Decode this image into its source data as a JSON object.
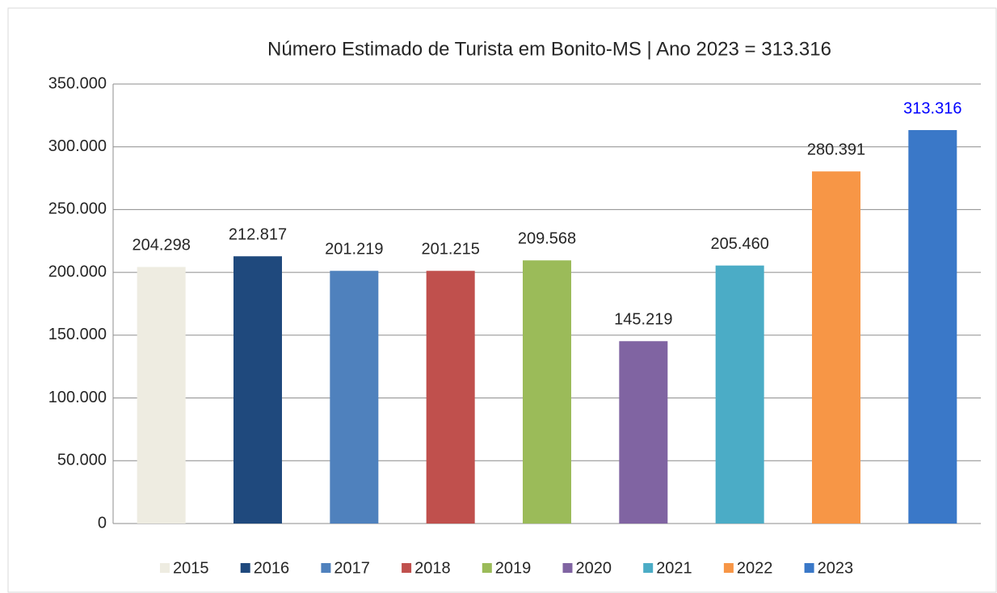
{
  "chart_data": {
    "type": "bar",
    "title": "Número Estimado de Turista em Bonito-MS | Ano 2023 = 313.316",
    "categories": [
      "2015",
      "2016",
      "2017",
      "2018",
      "2019",
      "2020",
      "2021",
      "2022",
      "2023"
    ],
    "values": [
      204298,
      212817,
      201219,
      201215,
      209568,
      145219,
      205460,
      280391,
      313316
    ],
    "value_labels": [
      "204.298",
      "212.817",
      "201.219",
      "201.215",
      "209.568",
      "145.219",
      "205.460",
      "280.391",
      "313.316"
    ],
    "colors": [
      "#eeece1",
      "#1f497d",
      "#4f81bd",
      "#c0504d",
      "#9bbb59",
      "#8064a2",
      "#4bacc6",
      "#f79646",
      "#3a78c8"
    ],
    "value_label_colors": [
      "#262626",
      "#262626",
      "#262626",
      "#262626",
      "#262626",
      "#262626",
      "#262626",
      "#262626",
      "#0000ff"
    ],
    "ylim": [
      0,
      350000
    ],
    "yticks": [
      0,
      {
        "value": 50000,
        "label": "50.000"
      },
      {
        "value": 100000,
        "label": "100.000"
      },
      {
        "value": 150000,
        "label": "150.000"
      },
      {
        "value": 200000,
        "label": "200.000"
      },
      {
        "value": 250000,
        "label": "250.000"
      },
      {
        "value": 300000,
        "label": "300.000"
      },
      {
        "value": 350000,
        "label": "350.000"
      }
    ],
    "grid": true,
    "legend": "bottom"
  }
}
